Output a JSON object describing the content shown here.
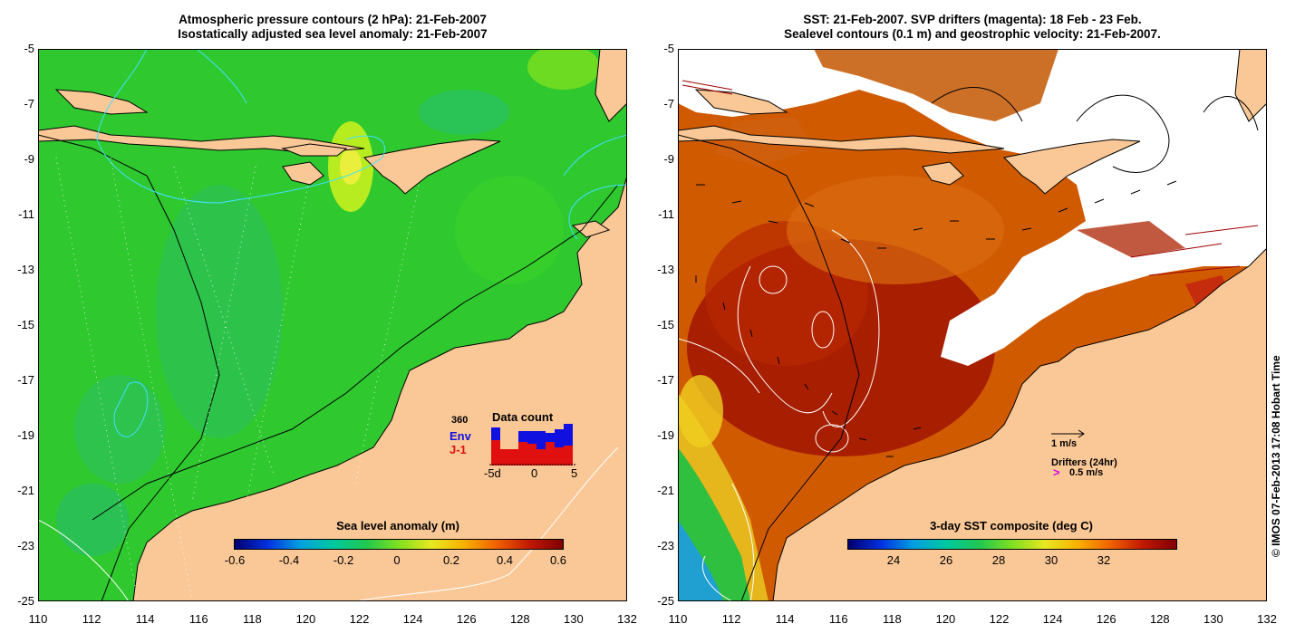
{
  "left_panel": {
    "title_line1": "Atmospheric pressure contours (2 hPa): 21-Feb-2007",
    "title_line2": "Isostatically adjusted sea level anomaly: 21-Feb-2007",
    "colorbar_label": "Sea level anomaly (m)",
    "colorbar_ticks": [
      "-0.6",
      "-0.4",
      "-0.2",
      "0",
      "0.2",
      "0.4",
      "0.6"
    ],
    "inset": {
      "count": "360",
      "env_label": "Env",
      "j1_label": "J-1",
      "title": "Data count",
      "x_ticks": [
        "-5d",
        "0",
        "5"
      ]
    },
    "colors": {
      "ocean": "#2fc82f",
      "land": "#fac896"
    }
  },
  "right_panel": {
    "title_line1": "SST: 21-Feb-2007. SVP drifters (magenta): 18 Feb - 23 Feb.",
    "title_line2": "Sealevel contours (0.1 m) and geostrophic velocity: 21-Feb-2007.",
    "colorbar_label": "3-day SST composite (deg C)",
    "colorbar_ticks": [
      "24",
      "26",
      "28",
      "30",
      "32"
    ],
    "velocity_scale": "1 m/s",
    "drifters_label": "Drifters (24hr)",
    "drifters_speed": "0.5 m/s",
    "colors": {
      "warm": "#c83c00",
      "hot": "#a01400",
      "land": "#fac896",
      "cloud": "#ffffff"
    }
  },
  "axes": {
    "y_ticks": [
      "-5",
      "-7",
      "-9",
      "-11",
      "-13",
      "-15",
      "-17",
      "-19",
      "-21",
      "-23",
      "-25"
    ],
    "x_ticks": [
      "110",
      "112",
      "114",
      "116",
      "118",
      "120",
      "122",
      "124",
      "126",
      "128",
      "130",
      "132"
    ]
  },
  "copyright": "© IMOS 07-Feb-2013 17:08 Hobart Time"
}
